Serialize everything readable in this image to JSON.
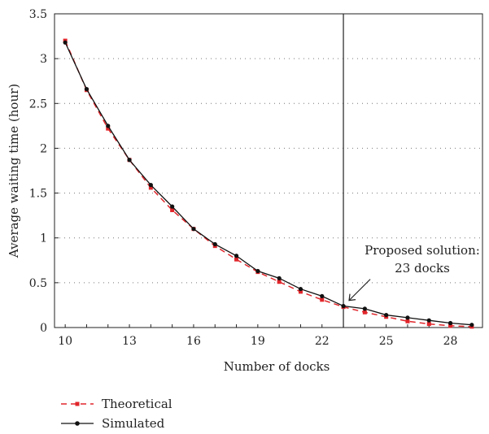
{
  "chart_data": {
    "type": "line",
    "xlabel": "Number of docks",
    "ylabel": "Average waiting time (hour)",
    "xlim": [
      9.5,
      29.5
    ],
    "ylim": [
      0,
      3.5
    ],
    "x_ticks": [
      10,
      13,
      16,
      19,
      22,
      25,
      28
    ],
    "x_tick_labels": [
      "10",
      "13",
      "16",
      "19",
      "22",
      "25",
      "28"
    ],
    "y_ticks": [
      0,
      0.5,
      1,
      1.5,
      2,
      2.5,
      3,
      3.5
    ],
    "y_tick_labels": [
      "0",
      "0.5",
      "1",
      "1.5",
      "2",
      "2.5",
      "3",
      "3.5"
    ],
    "grid": "horizontal dotted",
    "legend_position": "bottom-left",
    "x": [
      10,
      11,
      12,
      13,
      14,
      15,
      16,
      17,
      18,
      19,
      20,
      21,
      22,
      23,
      24,
      25,
      26,
      27,
      28,
      29
    ],
    "series": [
      {
        "name": "Theoretical",
        "color": "#e0262b",
        "line_style": "dashed",
        "marker": "square",
        "values": [
          3.2,
          2.65,
          2.22,
          1.87,
          1.56,
          1.31,
          1.1,
          0.91,
          0.76,
          0.62,
          0.51,
          0.4,
          0.31,
          0.23,
          0.17,
          0.12,
          0.07,
          0.04,
          0.02,
          0.01
        ]
      },
      {
        "name": "Simulated",
        "color": "#111111",
        "line_style": "solid",
        "marker": "circle",
        "values": [
          3.18,
          2.66,
          2.25,
          1.87,
          1.59,
          1.35,
          1.1,
          0.93,
          0.8,
          0.63,
          0.55,
          0.43,
          0.35,
          0.24,
          0.21,
          0.14,
          0.11,
          0.08,
          0.05,
          0.03
        ]
      }
    ],
    "vertical_line": {
      "x": 23
    },
    "annotation": {
      "line1": "Proposed solution:",
      "line2": "23 docks",
      "points_to": {
        "x": 23,
        "y": 0.23
      }
    }
  }
}
